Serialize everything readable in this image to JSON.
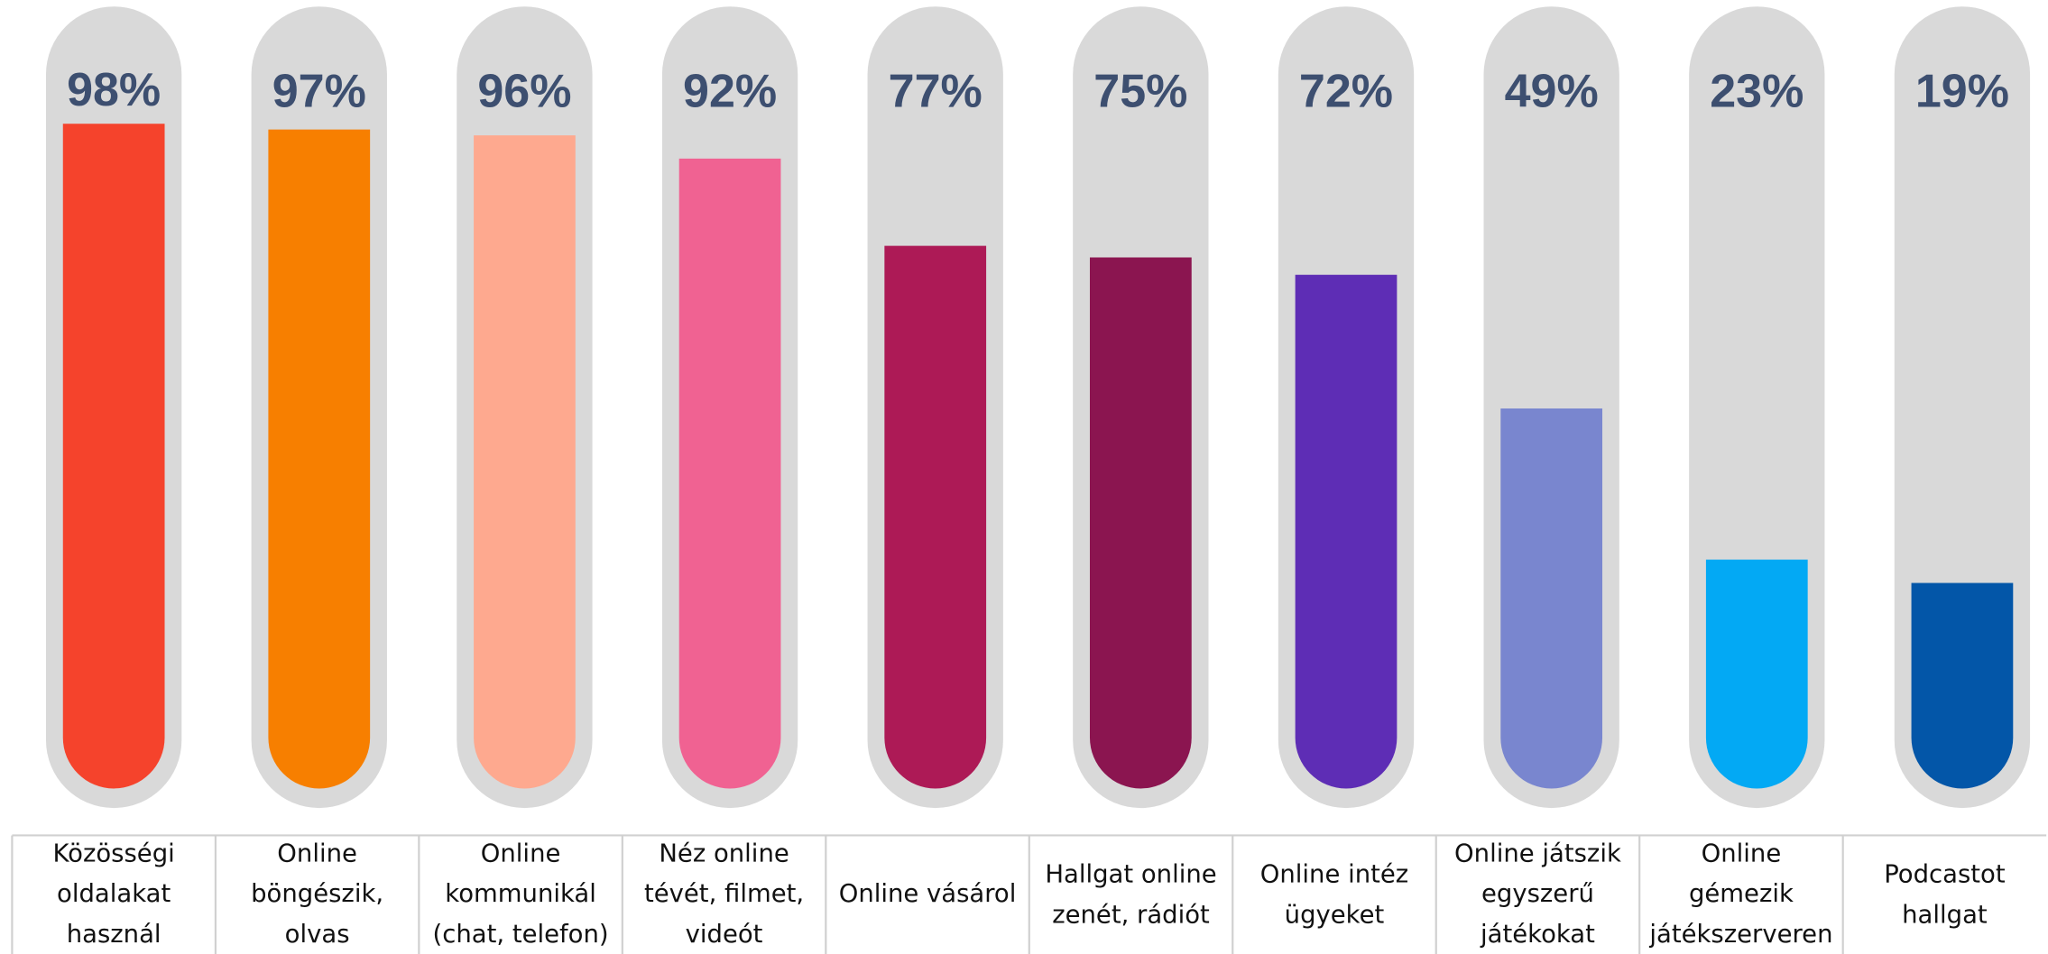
{
  "chart_data": {
    "type": "bar",
    "categories": [
      "Közösségi oldalakat használ",
      "Online böngészik, olvas",
      "Online kommunikál (chat, telefon)",
      "Néz online tévét, filmet, videót",
      "Online vásárol",
      "Hallgat online zenét, rádiót",
      "Online intéz ügyeket",
      "Online játszik egyszerű játékokat",
      "Online gémezik játékszerveren",
      "Podcastot hallgat"
    ],
    "values": [
      98,
      97,
      96,
      92,
      77,
      75,
      72,
      49,
      23,
      19
    ],
    "value_labels": [
      "98%",
      "97%",
      "96%",
      "92%",
      "77%",
      "75%",
      "72%",
      "49%",
      "23%",
      "19%"
    ],
    "colors": [
      "#f5432c",
      "#f77f00",
      "#fea98f",
      "#f06292",
      "#ad1a56",
      "#8b1550",
      "#5e2db5",
      "#7986cf",
      "#03a9f4",
      "#0356a8"
    ],
    "ylim": [
      0,
      100
    ]
  }
}
